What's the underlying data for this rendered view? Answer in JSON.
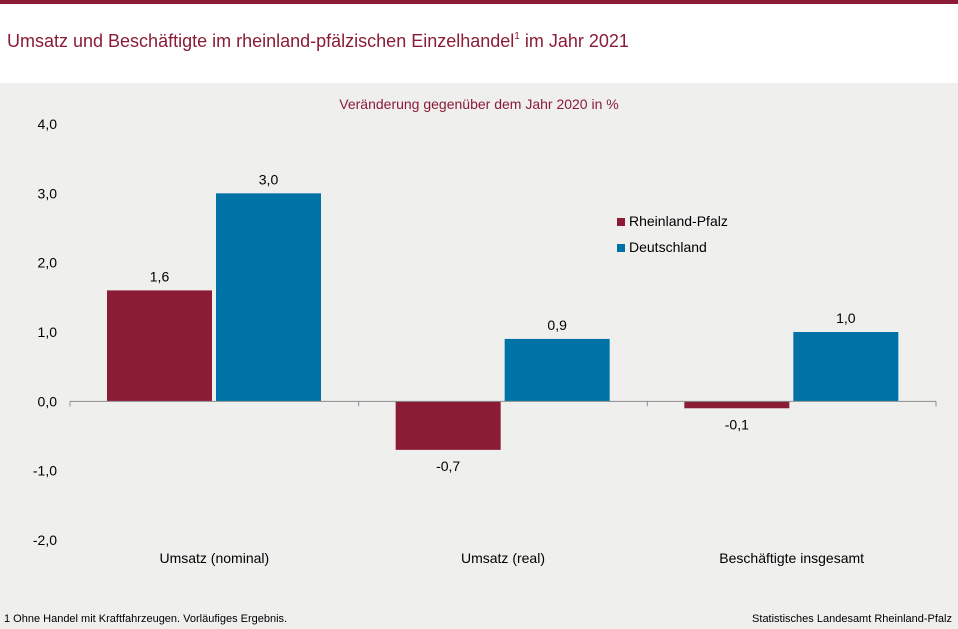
{
  "header": {
    "title": "Umsatz und Beschäftigte im rheinland-pfälzischen Einzelhandel",
    "title_footnote_mark": "1",
    "title_suffix": " im Jahr 2021"
  },
  "colors": {
    "accent": "#8a1c35",
    "rheinland_pfalz": "#8a1c35",
    "deutschland": "#0073a6"
  },
  "chart_data": {
    "type": "bar",
    "title": "Umsatz und Beschäftigte im rheinland-pfälzischen Einzelhandel im Jahr 2021",
    "subtitle": "Veränderung gegenüber dem Jahr 2020 in %",
    "categories": [
      "Umsatz (nominal)",
      "Umsatz (real)",
      "Beschäftigte insgesamt"
    ],
    "series": [
      {
        "name": "Rheinland-Pfalz",
        "color": "#8a1c35",
        "values": [
          1.6,
          -0.7,
          -0.1
        ],
        "labels": [
          "1,6",
          "-0,7",
          "-0,1"
        ]
      },
      {
        "name": "Deutschland",
        "color": "#0073a6",
        "values": [
          3.0,
          0.9,
          1.0
        ],
        "labels": [
          "3,0",
          "0,9",
          "1,0"
        ]
      }
    ],
    "ylim": [
      -2,
      4
    ],
    "yticks": [
      4,
      3,
      2,
      1,
      0,
      -1,
      -2
    ],
    "ytick_labels": [
      "4,0",
      "3,0",
      "2,0",
      "1,0",
      "0,0",
      "-1,0",
      "-2,0"
    ],
    "xlabel": "",
    "ylabel": "",
    "grid": false,
    "legend_position": "right"
  },
  "footer": {
    "footnote": "1 Ohne Handel mit Kraftfahrzeugen. Vorläufiges Ergebnis.",
    "source": "Statistisches Landesamt Rheinland-Pfalz"
  }
}
